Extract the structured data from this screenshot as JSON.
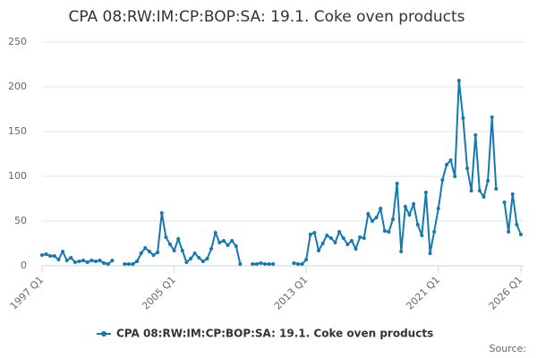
{
  "chart_data": {
    "type": "line",
    "title": "CPA 08:RW:IM:CP:BOP:SA: 19.1. Coke oven products",
    "source": "Source:",
    "categories": [
      "1997 Q1",
      null,
      null,
      null,
      null,
      null,
      null,
      null,
      null,
      null,
      null,
      null,
      null,
      null,
      null,
      null,
      null,
      null,
      null,
      null,
      null,
      null,
      null,
      null,
      null,
      null,
      null,
      null,
      null,
      null,
      null,
      null,
      "2005 Q1",
      null,
      null,
      null,
      null,
      null,
      null,
      null,
      null,
      null,
      null,
      null,
      null,
      null,
      null,
      null,
      null,
      null,
      null,
      null,
      null,
      null,
      null,
      null,
      null,
      null,
      null,
      null,
      null,
      null,
      null,
      null,
      "2013 Q1",
      null,
      null,
      null,
      null,
      null,
      null,
      null,
      null,
      null,
      null,
      null,
      null,
      null,
      null,
      null,
      null,
      null,
      null,
      null,
      null,
      null,
      null,
      null,
      null,
      null,
      null,
      null,
      null,
      null,
      null,
      null,
      "2021 Q1",
      null,
      null,
      null,
      null,
      null,
      null,
      null,
      null,
      null,
      null,
      null,
      null,
      null,
      null,
      null,
      null,
      null,
      null,
      null,
      "2026 Q1"
    ],
    "series": [
      {
        "name": "CPA 08:RW:IM:CP:BOP:SA: 19.1. Coke oven products",
        "color": "#1479b1",
        "values": [
          12,
          13,
          11,
          11,
          7,
          16,
          6,
          9,
          4,
          5,
          6,
          4,
          6,
          5,
          6,
          3,
          2,
          6,
          null,
          null,
          2,
          2,
          2,
          5,
          14,
          20,
          16,
          12,
          15,
          59,
          32,
          24,
          17,
          30,
          17,
          4,
          8,
          14,
          9,
          5,
          8,
          19,
          37,
          26,
          28,
          23,
          28,
          22,
          2,
          null,
          null,
          2,
          2,
          3,
          2,
          2,
          2,
          null,
          null,
          null,
          null,
          3,
          2,
          2,
          7,
          35,
          37,
          17,
          25,
          34,
          31,
          26,
          38,
          31,
          24,
          28,
          19,
          32,
          31,
          58,
          50,
          54,
          64,
          39,
          38,
          52,
          92,
          16,
          66,
          57,
          69,
          46,
          34,
          82,
          14,
          38,
          64,
          96,
          113,
          118,
          100,
          207,
          165,
          109,
          84,
          146,
          84,
          77,
          95,
          166,
          86,
          null,
          71,
          38,
          80,
          46,
          35
        ]
      }
    ],
    "ylim": [
      0,
      250
    ],
    "yticks": [
      0,
      50,
      100,
      150,
      200,
      250
    ],
    "grid": true
  }
}
